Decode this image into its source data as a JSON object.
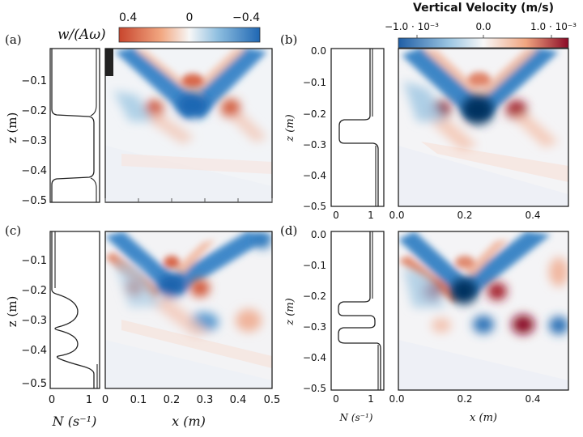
{
  "panels": {
    "a": {
      "letter": "(a)",
      "colorbar": {
        "title": "w/(Aω)",
        "ticks": [
          "0.4",
          "0",
          "−0.4"
        ],
        "range": [
          0.4,
          -0.4
        ]
      },
      "profile": {
        "ylabel": "z (m)",
        "yticks": [
          "−0.1",
          "−0.2",
          "−0.3",
          "−0.4",
          "−0.5"
        ]
      }
    },
    "b": {
      "letter": "(b)",
      "colorbar": {
        "title": "Vertical Velocity (m/s)",
        "ticks": [
          "−1.0 · 10⁻³",
          "0.0",
          "1.0 · 10⁻³"
        ]
      },
      "profile": {
        "ylabel": "z (m)",
        "yticks": [
          "0.0",
          "−0.1",
          "−0.2",
          "−0.3",
          "−0.4",
          "−0.5"
        ],
        "xticks": [
          "0",
          "1"
        ]
      },
      "field": {
        "xticks": [
          "0.0",
          "0.2",
          "0.4"
        ]
      }
    },
    "c": {
      "letter": "(c)",
      "profile": {
        "ylabel": "z (m)",
        "yticks": [
          "−0.1",
          "−0.2",
          "−0.3",
          "−0.4",
          "−0.5"
        ],
        "xticks": [
          "0",
          "1"
        ],
        "xlabel": "N (s⁻¹)"
      },
      "field": {
        "xticks": [
          "0",
          "0.1",
          "0.2",
          "0.3",
          "0.4",
          "0.5"
        ],
        "xlabel": "x (m)"
      }
    },
    "d": {
      "letter": "(d)",
      "profile": {
        "ylabel": "z (m)",
        "yticks": [
          "0.0",
          "−0.1",
          "−0.2",
          "−0.3",
          "−0.4",
          "−0.5"
        ],
        "xticks": [
          "0",
          "1"
        ],
        "xlabel": "N (s⁻¹)"
      },
      "field": {
        "xticks": [
          "0.0",
          "0.2",
          "0.4"
        ],
        "xlabel": "x (m)"
      }
    }
  },
  "colors": {
    "positive": "#d6604d",
    "negative": "#2166ac",
    "strong_positive": "#8b0a26",
    "strong_negative": "#053061",
    "zero": "#f7f7f7"
  },
  "chart_data": [
    {
      "panel": "a",
      "type": "line",
      "role": "stratification profile N(z)",
      "ylim": [
        -0.5,
        0.0
      ],
      "xlim": [
        0,
        1.2
      ],
      "x": [
        0,
        0,
        0.05,
        0.9,
        1.2,
        1.2,
        0.9,
        0.05,
        0,
        0
      ],
      "y": [
        0.0,
        -0.2,
        -0.22,
        -0.23,
        -0.26,
        -0.44,
        -0.47,
        -0.49,
        -0.5,
        -0.5
      ]
    },
    {
      "panel": "a",
      "type": "heatmap",
      "role": "vertical velocity field",
      "xlim": [
        0,
        0.5
      ],
      "ylim": [
        -0.5,
        0.0
      ],
      "clim": [
        0.4,
        -0.4
      ],
      "features": [
        {
          "kind": "beam",
          "sign": "negative",
          "from": [
            0.02,
            -0.03
          ],
          "to": [
            0.25,
            -0.2
          ]
        },
        {
          "kind": "beam",
          "sign": "negative",
          "from": [
            0.45,
            -0.03
          ],
          "to": [
            0.25,
            -0.2
          ]
        },
        {
          "kind": "blob",
          "sign": "negative",
          "x": 0.26,
          "z": -0.19
        },
        {
          "kind": "blob",
          "sign": "positive",
          "x": 0.14,
          "z": -0.2
        },
        {
          "kind": "blob",
          "sign": "positive",
          "x": 0.39,
          "z": -0.2
        },
        {
          "kind": "blob",
          "sign": "positive",
          "x": 0.26,
          "z": -0.11
        }
      ]
    },
    {
      "panel": "b",
      "type": "line",
      "role": "stratification profile N(z)",
      "ylim": [
        -0.5,
        0.0
      ],
      "xlim": [
        0,
        1.2
      ],
      "x": [
        1.1,
        1.1,
        0.2,
        0.1,
        0.2,
        1.1,
        1.1
      ],
      "y": [
        0.0,
        -0.22,
        -0.23,
        -0.26,
        -0.3,
        -0.31,
        -0.5
      ]
    },
    {
      "panel": "b",
      "type": "heatmap",
      "role": "vertical velocity field",
      "xlim": [
        0,
        0.5
      ],
      "ylim": [
        -0.5,
        0.0
      ],
      "clim": [
        -0.001,
        0.001
      ],
      "features": [
        {
          "kind": "beam",
          "sign": "negative",
          "from": [
            0.02,
            -0.03
          ],
          "to": [
            0.22,
            -0.2
          ]
        },
        {
          "kind": "beam",
          "sign": "negative",
          "from": [
            0.45,
            -0.03
          ],
          "to": [
            0.22,
            -0.2
          ]
        },
        {
          "kind": "blob",
          "sign": "strong_negative",
          "x": 0.22,
          "z": -0.19
        },
        {
          "kind": "blob",
          "sign": "strong_positive",
          "x": 0.11,
          "z": -0.2
        },
        {
          "kind": "blob",
          "sign": "strong_positive",
          "x": 0.34,
          "z": -0.2
        },
        {
          "kind": "blob",
          "sign": "positive",
          "x": 0.22,
          "z": -0.1
        }
      ]
    },
    {
      "panel": "c",
      "type": "line",
      "role": "stratification profile N(z)",
      "ylim": [
        -0.5,
        0.0
      ],
      "xlim": [
        0,
        1.2
      ],
      "x": [
        0,
        0,
        0.6,
        0.7,
        0.6,
        0,
        0.6,
        0.7,
        0.6,
        0,
        0.8,
        1.2,
        1.2
      ],
      "y": [
        0.0,
        -0.2,
        -0.22,
        -0.26,
        -0.29,
        -0.31,
        -0.33,
        -0.37,
        -0.4,
        -0.42,
        -0.45,
        -0.47,
        -0.5
      ]
    },
    {
      "panel": "c",
      "type": "heatmap",
      "role": "vertical velocity field",
      "xlim": [
        0,
        0.5
      ],
      "ylim": [
        -0.5,
        0.0
      ],
      "clim": [
        0.4,
        -0.4
      ],
      "features": [
        {
          "kind": "beam",
          "sign": "negative",
          "from": [
            0.0,
            -0.03
          ],
          "to": [
            0.2,
            -0.17
          ]
        },
        {
          "kind": "beam",
          "sign": "negative",
          "from": [
            0.48,
            -0.01
          ],
          "to": [
            0.2,
            -0.17
          ]
        },
        {
          "kind": "blob",
          "sign": "negative",
          "x": 0.2,
          "z": -0.16
        },
        {
          "kind": "blob",
          "sign": "positive",
          "x": 0.08,
          "z": -0.17
        },
        {
          "kind": "blob",
          "sign": "positive",
          "x": 0.32,
          "z": -0.18
        },
        {
          "kind": "blob",
          "sign": "negative",
          "x": 0.28,
          "z": -0.28
        },
        {
          "kind": "blob",
          "sign": "positive",
          "x": 0.42,
          "z": -0.28
        },
        {
          "kind": "blob",
          "sign": "negative",
          "x": 0.48,
          "z": -0.03
        }
      ]
    },
    {
      "panel": "d",
      "type": "line",
      "role": "stratification profile N(z)",
      "ylim": [
        -0.5,
        0.0
      ],
      "xlim": [
        0,
        1.2
      ],
      "x": [
        1.1,
        1.1,
        0.15,
        0.1,
        0.15,
        1.1,
        1.1,
        0.15,
        0.1,
        0.15,
        1.2,
        1.2
      ],
      "y": [
        0.0,
        -0.22,
        -0.23,
        -0.26,
        -0.28,
        -0.29,
        -0.31,
        -0.32,
        -0.35,
        -0.37,
        -0.38,
        -0.5
      ]
    },
    {
      "panel": "d",
      "type": "heatmap",
      "role": "vertical velocity field",
      "xlim": [
        0,
        0.5
      ],
      "ylim": [
        -0.5,
        0.0
      ],
      "clim": [
        -0.001,
        0.001
      ],
      "features": [
        {
          "kind": "beam",
          "sign": "negative",
          "from": [
            0.0,
            -0.03
          ],
          "to": [
            0.2,
            -0.18
          ]
        },
        {
          "kind": "beam",
          "sign": "negative",
          "from": [
            0.45,
            -0.02
          ],
          "to": [
            0.2,
            -0.18
          ]
        },
        {
          "kind": "blob",
          "sign": "strong_negative",
          "x": 0.2,
          "z": -0.17
        },
        {
          "kind": "blob",
          "sign": "strong_positive",
          "x": 0.1,
          "z": -0.18
        },
        {
          "kind": "blob",
          "sign": "strong_positive",
          "x": 0.3,
          "z": -0.18
        },
        {
          "kind": "blob",
          "sign": "negative",
          "x": 0.25,
          "z": -0.28
        },
        {
          "kind": "blob",
          "sign": "strong_positive",
          "x": 0.37,
          "z": -0.28
        },
        {
          "kind": "blob",
          "sign": "negative",
          "x": 0.48,
          "z": -0.28
        }
      ]
    }
  ]
}
